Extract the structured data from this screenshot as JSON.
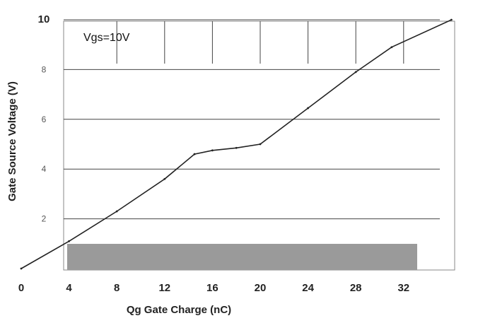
{
  "chart_data": {
    "type": "line",
    "xlabel": "Qg Gate Charge (nC)",
    "ylabel": "Gate Source Voltage (V)",
    "annotation": "Vgs=10V",
    "x_ticks": [
      "0",
      "4",
      "8",
      "12",
      "16",
      "20",
      "24",
      "28",
      "32"
    ],
    "y_ticks": [
      "2",
      "4",
      "6",
      "8",
      "10"
    ],
    "xlim": [
      0,
      36
    ],
    "ylim": [
      0,
      10
    ],
    "grid": true,
    "series": [
      {
        "x": [
          0,
          4,
          8,
          12,
          14.5,
          16,
          18,
          20,
          24,
          28,
          31,
          36
        ],
        "y": [
          0,
          1.1,
          2.3,
          3.6,
          4.6,
          4.75,
          4.85,
          5.0,
          6.45,
          7.9,
          8.9,
          10.0
        ]
      }
    ],
    "colors": {
      "line": "#222222",
      "grid": "#444444",
      "accent": "#333333"
    }
  }
}
